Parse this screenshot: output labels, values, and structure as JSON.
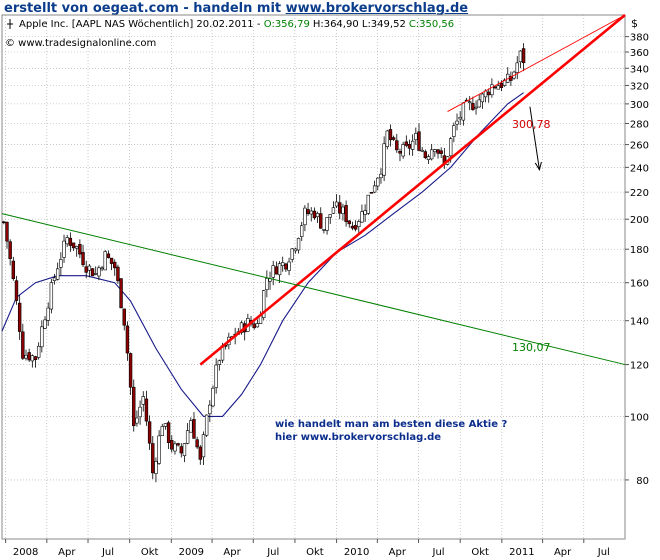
{
  "banner": {
    "prefix": "erstellt von oegeat.com - handeln mit ",
    "url": "www.brokervorschlag.de"
  },
  "header": {
    "symbol_line": "Apple Inc. [AAPL NAS  Wöchentlich] 20.02.2011 -",
    "open": "O:356,79",
    "hlc": "H:364,90 L:349,52",
    "close": "C:350,56",
    "source": "© www.tradesignalonline.com",
    "currency": "$"
  },
  "annotations": {
    "support_value": "300,78",
    "downtrend_value": "130,07",
    "note_line1": "wie handelt man am besten diese Aktie ?",
    "note_line2": "hier www.brokervorschlag.de"
  },
  "colors": {
    "banner": "#0b3d8c",
    "up_candle": "#ffffff",
    "down_candle": "#8b0000",
    "ma_line": "#1a1a8c",
    "support_line": "#ff0000",
    "downtrend_line": "#008000",
    "note_text": "#0b2d8c",
    "open_value": "#008000",
    "close_value": "#008000"
  },
  "chart_data": {
    "type": "candlestick",
    "title": "Apple Inc. [AAPL NAS Wöchentlich] 20.02.2011",
    "y_scale": "log",
    "ylim": [
      65,
      410
    ],
    "y_ticks": [
      80,
      100,
      120,
      140,
      160,
      180,
      200,
      220,
      240,
      260,
      280,
      300,
      320,
      340,
      360,
      380
    ],
    "x_ticks": [
      "2008",
      "Apr",
      "Jul",
      "Okt",
      "2009",
      "Apr",
      "Jul",
      "Okt",
      "2010",
      "Apr",
      "Jul",
      "Okt",
      "2011",
      "Apr",
      "Jul"
    ],
    "x_range": [
      "2007-12-24",
      "2011-09-30"
    ],
    "anchors": [
      {
        "date": "2007-12-28",
        "close": 198
      },
      {
        "date": "2008-01-18",
        "close": 161
      },
      {
        "date": "2008-02-08",
        "close": 125
      },
      {
        "date": "2008-03-07",
        "close": 123
      },
      {
        "date": "2008-03-28",
        "close": 143
      },
      {
        "date": "2008-04-25",
        "close": 170
      },
      {
        "date": "2008-05-16",
        "close": 187
      },
      {
        "date": "2008-06-06",
        "close": 181
      },
      {
        "date": "2008-06-27",
        "close": 170
      },
      {
        "date": "2008-07-18",
        "close": 165
      },
      {
        "date": "2008-08-08",
        "close": 176
      },
      {
        "date": "2008-08-29",
        "close": 169
      },
      {
        "date": "2008-09-19",
        "close": 140
      },
      {
        "date": "2008-10-10",
        "close": 96
      },
      {
        "date": "2008-10-31",
        "close": 107
      },
      {
        "date": "2008-11-21",
        "close": 82
      },
      {
        "date": "2008-12-12",
        "close": 98
      },
      {
        "date": "2009-01-02",
        "close": 90
      },
      {
        "date": "2009-01-23",
        "close": 88
      },
      {
        "date": "2009-02-13",
        "close": 99
      },
      {
        "date": "2009-03-06",
        "close": 85
      },
      {
        "date": "2009-03-27",
        "close": 106
      },
      {
        "date": "2009-04-17",
        "close": 123
      },
      {
        "date": "2009-05-08",
        "close": 130
      },
      {
        "date": "2009-05-29",
        "close": 135
      },
      {
        "date": "2009-06-19",
        "close": 139
      },
      {
        "date": "2009-07-10",
        "close": 138
      },
      {
        "date": "2009-07-31",
        "close": 163
      },
      {
        "date": "2009-08-21",
        "close": 169
      },
      {
        "date": "2009-09-11",
        "close": 172
      },
      {
        "date": "2009-10-02",
        "close": 184
      },
      {
        "date": "2009-10-23",
        "close": 204
      },
      {
        "date": "2009-11-13",
        "close": 205
      },
      {
        "date": "2009-12-04",
        "close": 194
      },
      {
        "date": "2009-12-25",
        "close": 209
      },
      {
        "date": "2010-01-15",
        "close": 205
      },
      {
        "date": "2010-02-05",
        "close": 195
      },
      {
        "date": "2010-02-26",
        "close": 204
      },
      {
        "date": "2010-03-19",
        "close": 222
      },
      {
        "date": "2010-04-09",
        "close": 240
      },
      {
        "date": "2010-04-23",
        "close": 270
      },
      {
        "date": "2010-05-14",
        "close": 253
      },
      {
        "date": "2010-06-04",
        "close": 255
      },
      {
        "date": "2010-06-25",
        "close": 266
      },
      {
        "date": "2010-07-16",
        "close": 250
      },
      {
        "date": "2010-08-06",
        "close": 261
      },
      {
        "date": "2010-08-27",
        "close": 241
      },
      {
        "date": "2010-09-17",
        "close": 275
      },
      {
        "date": "2010-10-08",
        "close": 294
      },
      {
        "date": "2010-10-29",
        "close": 300
      },
      {
        "date": "2010-11-19",
        "close": 307
      },
      {
        "date": "2010-12-10",
        "close": 320
      },
      {
        "date": "2010-12-31",
        "close": 322
      },
      {
        "date": "2011-01-21",
        "close": 327
      },
      {
        "date": "2011-02-11",
        "close": 356
      },
      {
        "date": "2011-02-18",
        "close": 350.56
      }
    ],
    "moving_average": [
      {
        "date": "2007-12-24",
        "value": 135
      },
      {
        "date": "2008-01-25",
        "value": 152
      },
      {
        "date": "2008-03-07",
        "value": 160
      },
      {
        "date": "2008-04-25",
        "value": 164
      },
      {
        "date": "2008-06-27",
        "value": 164
      },
      {
        "date": "2008-08-29",
        "value": 160
      },
      {
        "date": "2008-10-03",
        "value": 150
      },
      {
        "date": "2008-11-28",
        "value": 127
      },
      {
        "date": "2009-01-23",
        "value": 110
      },
      {
        "date": "2009-03-13",
        "value": 100
      },
      {
        "date": "2009-04-24",
        "value": 100
      },
      {
        "date": "2009-06-05",
        "value": 108
      },
      {
        "date": "2009-07-17",
        "value": 120
      },
      {
        "date": "2009-09-04",
        "value": 140
      },
      {
        "date": "2009-10-30",
        "value": 160
      },
      {
        "date": "2010-01-01",
        "value": 178
      },
      {
        "date": "2010-03-05",
        "value": 189
      },
      {
        "date": "2010-05-07",
        "value": 204
      },
      {
        "date": "2010-07-09",
        "value": 220
      },
      {
        "date": "2010-09-10",
        "value": 240
      },
      {
        "date": "2010-11-12",
        "value": 270
      },
      {
        "date": "2011-01-14",
        "value": 300
      },
      {
        "date": "2011-02-18",
        "value": 312
      }
    ],
    "trendlines": [
      {
        "name": "support",
        "from": {
          "date": "2009-03-06",
          "value": 120
        },
        "to": {
          "date": "2011-09-30",
          "value": 410
        }
      },
      {
        "name": "channel",
        "from": {
          "date": "2010-09-03",
          "value": 292
        },
        "to": {
          "date": "2011-09-30",
          "value": 410
        }
      },
      {
        "name": "downtrend",
        "from": {
          "date": "2007-12-24",
          "value": 204
        },
        "to": {
          "date": "2011-09-30",
          "value": 120
        }
      }
    ],
    "arrow": {
      "from": {
        "date": "2011-03-04",
        "value": 297
      },
      "to": {
        "date": "2011-03-25",
        "value": 238
      }
    }
  }
}
